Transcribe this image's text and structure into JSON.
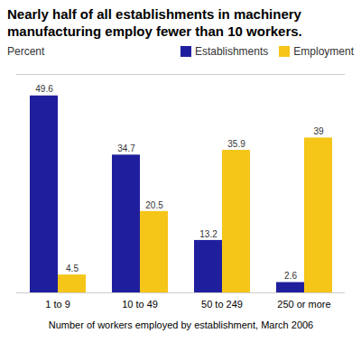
{
  "chart_data": {
    "type": "bar",
    "title": "Nearly half of all establishments in machinery manufacturing employ fewer than 10 workers.",
    "y_label": "Percent",
    "x_label": "Number of workers employed by establishment, March 2006",
    "categories": [
      "1 to 9",
      "10 to 49",
      "50 to 249",
      "250 or more"
    ],
    "series": [
      {
        "name": "Establishments",
        "color": "#1F1F9E",
        "values": [
          49.6,
          34.7,
          13.2,
          2.6
        ]
      },
      {
        "name": "Employment",
        "color": "#F5C518",
        "values": [
          4.5,
          20.5,
          35.9,
          39.0
        ]
      }
    ],
    "ylim": [
      0,
      55
    ],
    "grid": false,
    "legend": "upper right",
    "data_labels": true,
    "tick_labels": "x"
  }
}
